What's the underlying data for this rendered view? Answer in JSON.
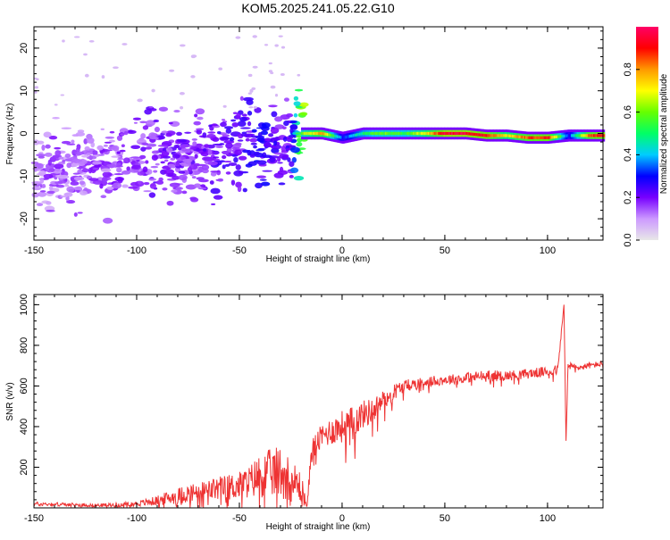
{
  "title": "KOM5.2025.241.05.22.G10",
  "chart_data": [
    {
      "type": "heatmap",
      "name": "spectrogram",
      "xlabel": "Height of straight line (km)",
      "ylabel": "Frequency (Hz)",
      "xlim": [
        -150,
        127
      ],
      "ylim": [
        -25,
        25
      ],
      "xticks": [
        -150,
        -100,
        -50,
        0,
        50,
        100
      ],
      "yticks": [
        -20,
        -10,
        0,
        10,
        20
      ],
      "colorbar": {
        "label": "Normalized spectral amplitude",
        "range": [
          0,
          1
        ],
        "ticks": [
          "0.0",
          "0.2",
          "0.4",
          "0.6",
          "0.8"
        ],
        "tick_values": [
          0.0,
          0.2,
          0.4,
          0.6,
          0.8
        ],
        "colors": [
          "#e8e8e8",
          "#cc99ff",
          "#7700ff",
          "#0000ff",
          "#00ccff",
          "#00ff66",
          "#66ff00",
          "#ffff00",
          "#ff9900",
          "#ff0000",
          "#ff0066"
        ]
      },
      "ridge": [
        {
          "x": -150,
          "y": -9,
          "a": 0.12
        },
        {
          "x": -140,
          "y": -9,
          "a": 0.14
        },
        {
          "x": -130,
          "y": -8,
          "a": 0.14
        },
        {
          "x": -120,
          "y": -7,
          "a": 0.15
        },
        {
          "x": -110,
          "y": -7,
          "a": 0.15
        },
        {
          "x": -100,
          "y": -6,
          "a": 0.17
        },
        {
          "x": -90,
          "y": -4,
          "a": 0.18
        },
        {
          "x": -80,
          "y": -5,
          "a": 0.18
        },
        {
          "x": -70,
          "y": -6,
          "a": 0.18
        },
        {
          "x": -60,
          "y": -5,
          "a": 0.2
        },
        {
          "x": -50,
          "y": -3,
          "a": 0.22
        },
        {
          "x": -40,
          "y": -2,
          "a": 0.25
        },
        {
          "x": -30,
          "y": -3,
          "a": 0.22
        },
        {
          "x": -25,
          "y": -2,
          "a": 0.2
        },
        {
          "x": -20,
          "y": 0,
          "a": 0.6
        },
        {
          "x": -10,
          "y": 0,
          "a": 0.8
        },
        {
          "x": 0,
          "y": -1,
          "a": 0.3
        },
        {
          "x": 10,
          "y": 0,
          "a": 0.5
        },
        {
          "x": 20,
          "y": 0,
          "a": 0.6
        },
        {
          "x": 30,
          "y": 0,
          "a": 0.55
        },
        {
          "x": 40,
          "y": 0,
          "a": 0.7
        },
        {
          "x": 50,
          "y": 0,
          "a": 0.95
        },
        {
          "x": 60,
          "y": 0,
          "a": 0.95
        },
        {
          "x": 70,
          "y": -0.5,
          "a": 0.9
        },
        {
          "x": 80,
          "y": -0.5,
          "a": 0.7
        },
        {
          "x": 90,
          "y": -1,
          "a": 0.85
        },
        {
          "x": 100,
          "y": -1,
          "a": 0.9
        },
        {
          "x": 110,
          "y": -0.5,
          "a": 0.3
        },
        {
          "x": 120,
          "y": -0.5,
          "a": 0.85
        },
        {
          "x": 127,
          "y": -0.5,
          "a": 0.9
        }
      ]
    },
    {
      "type": "line",
      "name": "snr",
      "xlabel": "Height of straight line (km)",
      "ylabel": "SNR (v/v)",
      "xlim": [
        -150,
        127
      ],
      "ylim": [
        0,
        1050
      ],
      "xticks": [
        -150,
        -100,
        -50,
        0,
        50,
        100
      ],
      "yticks": [
        200,
        400,
        600,
        800,
        1000
      ],
      "color": "#ee3333",
      "series": [
        {
          "name": "SNR",
          "x": [
            -150,
            -140,
            -130,
            -120,
            -110,
            -100,
            -90,
            -80,
            -70,
            -60,
            -50,
            -45,
            -40,
            -35,
            -30,
            -25,
            -20,
            -17,
            -15,
            -10,
            -5,
            0,
            5,
            10,
            15,
            20,
            25,
            30,
            40,
            50,
            60,
            70,
            80,
            90,
            100,
            105,
            108,
            109,
            110,
            115,
            120,
            127
          ],
          "y": [
            20,
            18,
            15,
            12,
            15,
            20,
            35,
            60,
            80,
            95,
            110,
            130,
            160,
            170,
            180,
            140,
            100,
            10,
            280,
            350,
            380,
            400,
            420,
            460,
            480,
            530,
            570,
            600,
            620,
            630,
            640,
            650,
            650,
            660,
            670,
            680,
            1000,
            330,
            700,
            690,
            700,
            710
          ],
          "noise": [
            10,
            10,
            8,
            8,
            10,
            12,
            25,
            40,
            50,
            60,
            70,
            80,
            110,
            120,
            130,
            110,
            80,
            10,
            60,
            60,
            70,
            80,
            80,
            70,
            60,
            50,
            40,
            30,
            25,
            25,
            25,
            30,
            25,
            25,
            25,
            25,
            0,
            0,
            20,
            15,
            15,
            15
          ]
        }
      ]
    }
  ]
}
